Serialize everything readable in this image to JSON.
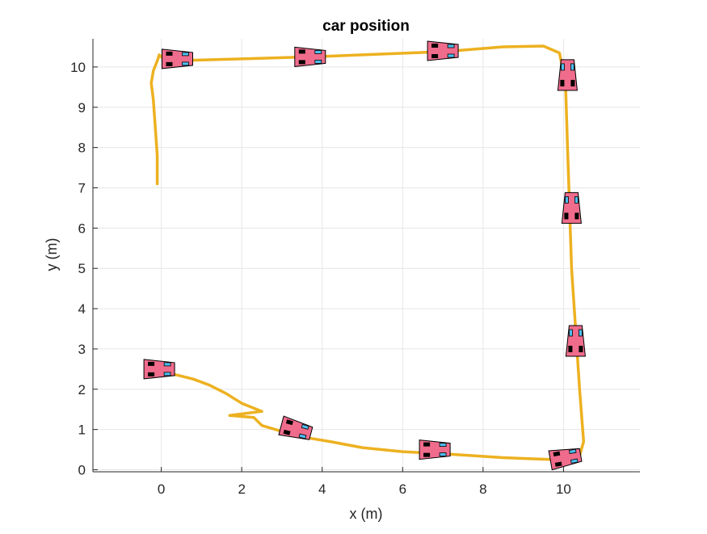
{
  "chart_data": {
    "type": "line",
    "title": "car position",
    "xlabel": "x (m)",
    "ylabel": "y (m)",
    "xlim": [
      -1.7,
      11.9
    ],
    "ylim": [
      -0.05,
      10.7
    ],
    "xticks": [
      0,
      2,
      4,
      6,
      8,
      10
    ],
    "yticks": [
      0,
      1,
      2,
      3,
      4,
      5,
      6,
      7,
      8,
      9,
      10
    ],
    "grid": true,
    "series": [
      {
        "color": "#EDB120",
        "x": [
          -0.1,
          -0.1,
          -0.15,
          -0.2,
          -0.25,
          -0.2,
          -0.1,
          -0.05,
          0.1,
          2.0,
          4.0,
          5.5,
          7.0,
          8.5,
          9.5,
          9.9,
          10.05,
          10.1,
          10.15,
          10.2,
          10.3,
          10.4,
          10.5,
          10.4,
          10.3,
          9.8,
          8.5,
          7.0,
          6.0,
          5.0,
          4.2,
          3.6,
          3.0,
          2.5,
          2.3,
          1.7,
          2.5,
          2.0,
          1.6,
          1.2,
          0.8,
          0.4,
          0.1,
          -0.1
        ],
        "y": [
          7.1,
          7.8,
          8.5,
          9.2,
          9.6,
          9.9,
          10.15,
          10.3,
          10.15,
          10.2,
          10.26,
          10.32,
          10.38,
          10.5,
          10.52,
          10.35,
          9.6,
          8.0,
          6.5,
          5.0,
          3.5,
          2.0,
          0.7,
          0.35,
          0.25,
          0.25,
          0.3,
          0.4,
          0.45,
          0.55,
          0.7,
          0.8,
          0.95,
          1.1,
          1.3,
          1.35,
          1.45,
          1.65,
          1.9,
          2.1,
          2.25,
          2.35,
          2.4,
          2.45
        ]
      }
    ],
    "cars": [
      {
        "x": -0.05,
        "y": 2.5,
        "heading_deg": 0
      },
      {
        "x": 3.35,
        "y": 1.0,
        "heading_deg": -15
      },
      {
        "x": 6.8,
        "y": 0.5,
        "heading_deg": 0
      },
      {
        "x": 10.05,
        "y": 0.3,
        "heading_deg": 10
      },
      {
        "x": 10.3,
        "y": 3.2,
        "heading_deg": 90
      },
      {
        "x": 10.2,
        "y": 6.5,
        "heading_deg": 90
      },
      {
        "x": 10.1,
        "y": 9.8,
        "heading_deg": 90
      },
      {
        "x": 0.4,
        "y": 10.2,
        "heading_deg": 0
      },
      {
        "x": 3.7,
        "y": 10.25,
        "heading_deg": 0
      },
      {
        "x": 7.0,
        "y": 10.4,
        "heading_deg": 0
      }
    ],
    "colors": {
      "trajectory": "#EDB120",
      "car_body": "#F06C8C",
      "car_outline": "#000000",
      "front_wheel": "#4DBEEE",
      "rear_wheel": "#000000",
      "grid": "#e6e6e6",
      "axis": "#262626"
    }
  }
}
